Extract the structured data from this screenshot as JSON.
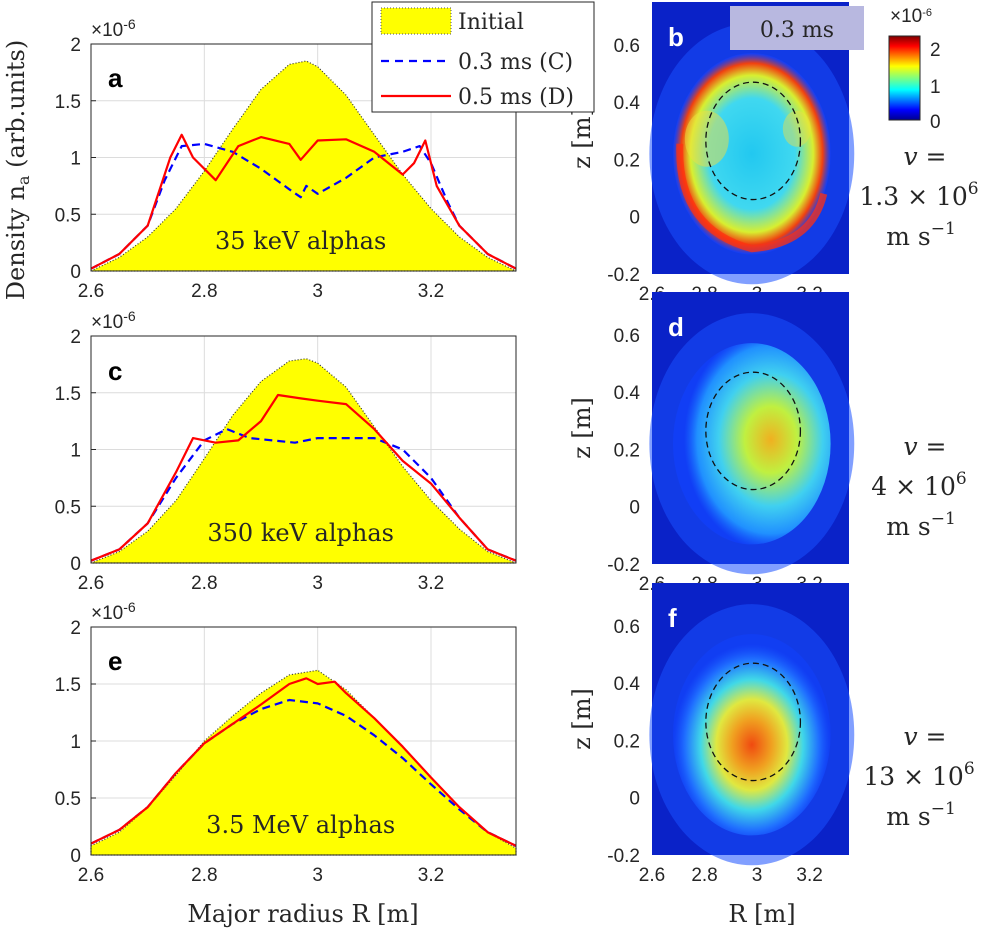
{
  "figure": {
    "ylabel_left": "Density n",
    "ylabel_sub": "a",
    "ylabel_units": " (arb.units)",
    "xlabel_left": "Major radius R [m]",
    "exponent": "×10",
    "exponent_power": "-6",
    "colorbar_exponent": "×10",
    "colorbar_exponent_power": "-6",
    "colorbar_ticks": [
      "2",
      "1",
      "0"
    ],
    "legend": [
      {
        "label": "Initial",
        "color": "#ffff00",
        "style": "filled-area"
      },
      {
        "label": "0.3 ms (C)",
        "color": "#0000ff",
        "style": "dashed"
      },
      {
        "label": "0.5 ms (D)",
        "color": "#ff0000",
        "style": "solid"
      }
    ],
    "time_box": "0.3 ms",
    "right_xlabel": "R [m]",
    "right_ylabel": "z [m]"
  },
  "chart_data": [
    {
      "type": "area",
      "panel": "a",
      "annotation": "35 keV alphas",
      "xlim": [
        2.6,
        3.35
      ],
      "ylim": [
        0,
        2
      ],
      "xticks": [
        "2.6",
        "2.8",
        "3",
        "3.2"
      ],
      "yticks": [
        "0",
        "0.5",
        "1",
        "1.5",
        "2"
      ],
      "y_scale": "×10^-6",
      "series": [
        {
          "name": "Initial",
          "color": "#ffff00",
          "x": [
            2.6,
            2.65,
            2.7,
            2.75,
            2.8,
            2.85,
            2.9,
            2.95,
            2.98,
            3.0,
            3.05,
            3.1,
            3.15,
            3.2,
            3.25,
            3.3,
            3.35
          ],
          "y": [
            0.0,
            0.12,
            0.3,
            0.55,
            0.88,
            1.25,
            1.6,
            1.82,
            1.85,
            1.8,
            1.55,
            1.2,
            0.85,
            0.55,
            0.3,
            0.12,
            0.0
          ]
        },
        {
          "name": "0.3 ms (C)",
          "color": "#0000ff",
          "x": [
            2.6,
            2.65,
            2.7,
            2.73,
            2.76,
            2.8,
            2.85,
            2.9,
            2.95,
            2.97,
            2.98,
            3.0,
            3.05,
            3.1,
            3.15,
            3.18,
            3.2,
            3.23,
            3.25,
            3.3,
            3.35
          ],
          "y": [
            0.02,
            0.15,
            0.4,
            0.8,
            1.1,
            1.12,
            1.05,
            0.9,
            0.72,
            0.65,
            0.75,
            0.68,
            0.82,
            1.0,
            1.05,
            1.1,
            0.95,
            0.6,
            0.4,
            0.15,
            0.02
          ]
        },
        {
          "name": "0.5 ms (D)",
          "color": "#ff0000",
          "x": [
            2.6,
            2.65,
            2.7,
            2.74,
            2.76,
            2.78,
            2.82,
            2.86,
            2.9,
            2.95,
            2.97,
            3.0,
            3.05,
            3.1,
            3.15,
            3.17,
            3.19,
            3.21,
            3.25,
            3.3,
            3.35
          ],
          "y": [
            0.02,
            0.15,
            0.4,
            1.0,
            1.2,
            1.0,
            0.8,
            1.1,
            1.18,
            1.12,
            0.98,
            1.15,
            1.16,
            1.05,
            0.85,
            0.95,
            1.15,
            0.75,
            0.4,
            0.15,
            0.02
          ]
        }
      ]
    },
    {
      "type": "area",
      "panel": "c",
      "annotation": "350 keV alphas",
      "xlim": [
        2.6,
        3.35
      ],
      "ylim": [
        0,
        2
      ],
      "xticks": [
        "2.6",
        "2.8",
        "3",
        "3.2"
      ],
      "yticks": [
        "0",
        "0.5",
        "1",
        "1.5",
        "2"
      ],
      "y_scale": "×10^-6",
      "series": [
        {
          "name": "Initial",
          "color": "#ffff00",
          "x": [
            2.6,
            2.65,
            2.7,
            2.75,
            2.8,
            2.85,
            2.9,
            2.95,
            2.98,
            3.0,
            3.05,
            3.1,
            3.15,
            3.2,
            3.25,
            3.3,
            3.35
          ],
          "y": [
            0.0,
            0.1,
            0.28,
            0.55,
            0.92,
            1.3,
            1.6,
            1.78,
            1.8,
            1.76,
            1.55,
            1.2,
            0.85,
            0.55,
            0.3,
            0.1,
            0.0
          ]
        },
        {
          "name": "0.3 ms (C)",
          "color": "#0000ff",
          "x": [
            2.6,
            2.65,
            2.7,
            2.75,
            2.8,
            2.84,
            2.88,
            2.92,
            2.96,
            3.0,
            3.05,
            3.1,
            3.15,
            3.2,
            3.25,
            3.3,
            3.35
          ],
          "y": [
            0.02,
            0.12,
            0.35,
            0.75,
            1.08,
            1.18,
            1.1,
            1.08,
            1.06,
            1.1,
            1.1,
            1.1,
            1.0,
            0.75,
            0.4,
            0.12,
            0.02
          ]
        },
        {
          "name": "0.5 ms (D)",
          "color": "#ff0000",
          "x": [
            2.6,
            2.65,
            2.7,
            2.75,
            2.78,
            2.82,
            2.86,
            2.9,
            2.93,
            2.97,
            3.0,
            3.05,
            3.1,
            3.15,
            3.2,
            3.25,
            3.3,
            3.35
          ],
          "y": [
            0.02,
            0.12,
            0.35,
            0.8,
            1.1,
            1.06,
            1.08,
            1.25,
            1.48,
            1.45,
            1.43,
            1.4,
            1.18,
            0.9,
            0.7,
            0.4,
            0.12,
            0.02
          ]
        }
      ]
    },
    {
      "type": "area",
      "panel": "e",
      "annotation": "3.5 MeV alphas",
      "xlim": [
        2.6,
        3.35
      ],
      "ylim": [
        0,
        2
      ],
      "xticks": [
        "2.6",
        "2.8",
        "3",
        "3.2"
      ],
      "yticks": [
        "0",
        "0.5",
        "1",
        "1.5",
        "2"
      ],
      "y_scale": "×10^-6",
      "series": [
        {
          "name": "Initial",
          "color": "#ffff00",
          "x": [
            2.6,
            2.65,
            2.7,
            2.75,
            2.8,
            2.85,
            2.9,
            2.95,
            3.0,
            3.05,
            3.1,
            3.15,
            3.2,
            3.25,
            3.3,
            3.35
          ],
          "y": [
            0.08,
            0.2,
            0.42,
            0.7,
            1.0,
            1.22,
            1.42,
            1.58,
            1.62,
            1.45,
            1.2,
            0.95,
            0.68,
            0.42,
            0.2,
            0.06
          ]
        },
        {
          "name": "0.3 ms (C)",
          "color": "#0000ff",
          "x": [
            2.6,
            2.65,
            2.7,
            2.75,
            2.8,
            2.85,
            2.9,
            2.95,
            3.0,
            3.05,
            3.1,
            3.15,
            3.2,
            3.25,
            3.3,
            3.35
          ],
          "y": [
            0.1,
            0.22,
            0.42,
            0.72,
            0.98,
            1.15,
            1.28,
            1.36,
            1.33,
            1.22,
            1.05,
            0.85,
            0.62,
            0.4,
            0.2,
            0.08
          ]
        },
        {
          "name": "0.5 ms (D)",
          "color": "#ff0000",
          "x": [
            2.6,
            2.65,
            2.7,
            2.75,
            2.8,
            2.85,
            2.9,
            2.95,
            2.98,
            3.0,
            3.03,
            3.05,
            3.1,
            3.15,
            3.2,
            3.25,
            3.3,
            3.35
          ],
          "y": [
            0.1,
            0.22,
            0.42,
            0.72,
            0.98,
            1.15,
            1.32,
            1.5,
            1.55,
            1.5,
            1.52,
            1.42,
            1.2,
            0.95,
            0.68,
            0.42,
            0.2,
            0.08
          ]
        }
      ]
    },
    {
      "type": "heatmap",
      "panel": "b",
      "xlim": [
        2.6,
        3.35
      ],
      "ylim": [
        -0.2,
        0.75
      ],
      "xticks": [
        "2.6",
        "2.8",
        "3",
        "3.2"
      ],
      "yticks": [
        "-0.2",
        "0",
        "0.2",
        "0.4",
        "0.6"
      ],
      "colormap": "jet",
      "clim": [
        0,
        2.3
      ],
      "pattern": "ring",
      "velocity_lines": [
        "v =",
        "1.3 × 10",
        "6",
        "m s",
        "−1"
      ]
    },
    {
      "type": "heatmap",
      "panel": "d",
      "xlim": [
        2.6,
        3.35
      ],
      "ylim": [
        -0.2,
        0.75
      ],
      "xticks": [
        "2.6",
        "2.8",
        "3",
        "3.2"
      ],
      "yticks": [
        "-0.2",
        "0",
        "0.2",
        "0.4",
        "0.6"
      ],
      "colormap": "jet",
      "clim": [
        0,
        2.3
      ],
      "pattern": "crescent-right",
      "velocity_lines": [
        "v =",
        "4 × 10",
        "6",
        "m s",
        "−1"
      ]
    },
    {
      "type": "heatmap",
      "panel": "f",
      "xlim": [
        2.6,
        3.35
      ],
      "ylim": [
        -0.2,
        0.75
      ],
      "xticks": [
        "2.6",
        "2.8",
        "3",
        "3.2"
      ],
      "yticks": [
        "-0.2",
        "0",
        "0.2",
        "0.4",
        "0.6"
      ],
      "colormap": "jet",
      "clim": [
        0,
        2.3
      ],
      "pattern": "core",
      "velocity_lines": [
        "v =",
        "13 × 10",
        "6",
        "m s",
        "−1"
      ]
    }
  ]
}
